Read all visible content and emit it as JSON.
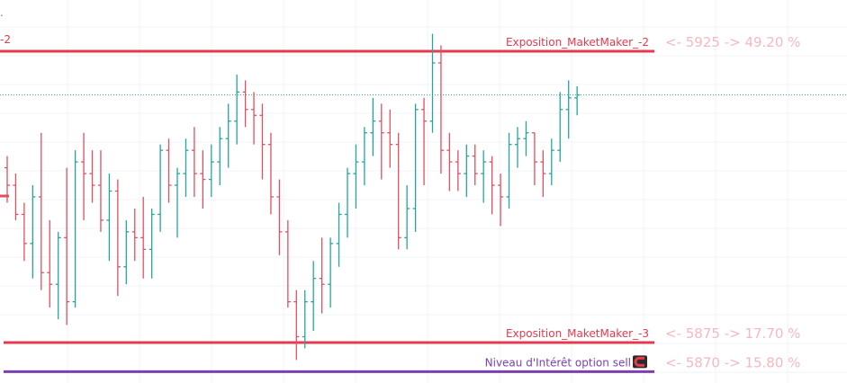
{
  "colors": {
    "up": "#26a69a",
    "down": "#e25060",
    "level": "#e53a4d",
    "interest": "#7b3fb0",
    "faded": "#f5b8c0",
    "grid": "#f0f3fa",
    "current": "#26a69a"
  },
  "corner_text": "-2",
  "levels": [
    {
      "name": "Exposition_MaketMaker_-2",
      "price": 5925,
      "pct": "49.20 %",
      "right_text": "<- 5925 -> 49.20 %",
      "color": "#e53a4d"
    },
    {
      "name": "Exposition_MaketMaker_-3",
      "price": 5875,
      "pct": "17.70 %",
      "right_text": "<- 5875 -> 17.70 %",
      "color": "#e53a4d"
    },
    {
      "name": "Niveau d'Intérêt option sell",
      "price": 5870,
      "pct": "15.80 %",
      "right_text": "<- 5870 -> 15.80 %",
      "color": "#7b3fb0",
      "icon": "magnet-icon"
    }
  ],
  "chart_data": {
    "type": "ohlc",
    "current_price": 5917.5,
    "candles": [
      [
        5905,
        5907,
        5899,
        5902
      ],
      [
        5902,
        5904,
        5896,
        5897
      ],
      [
        5897,
        5899,
        5889,
        5892
      ],
      [
        5892,
        5902,
        5886,
        5900
      ],
      [
        5900,
        5911,
        5884,
        5887
      ],
      [
        5887,
        5896,
        5881,
        5885
      ],
      [
        5885,
        5894,
        5879,
        5893
      ],
      [
        5893,
        5905,
        5878,
        5882
      ],
      [
        5882,
        5908,
        5881,
        5906
      ],
      [
        5906,
        5911,
        5896,
        5904
      ],
      [
        5904,
        5908,
        5899,
        5902
      ],
      [
        5902,
        5908,
        5894,
        5896
      ],
      [
        5896,
        5904,
        5889,
        5901
      ],
      [
        5901,
        5903,
        5883,
        5888
      ],
      [
        5888,
        5896,
        5885,
        5894
      ],
      [
        5894,
        5898,
        5889,
        5893
      ],
      [
        5893,
        5900,
        5886,
        5891
      ],
      [
        5891,
        5898,
        5886,
        5897
      ],
      [
        5897,
        5909,
        5894,
        5908
      ],
      [
        5908,
        5910,
        5899,
        5902
      ],
      [
        5902,
        5905,
        5893,
        5904
      ],
      [
        5904,
        5910,
        5900,
        5908
      ],
      [
        5908,
        5912,
        5900,
        5904
      ],
      [
        5904,
        5908,
        5898,
        5903
      ],
      [
        5903,
        5909,
        5900,
        5906
      ],
      [
        5906,
        5912,
        5902,
        5910
      ],
      [
        5910,
        5916,
        5905,
        5913
      ],
      [
        5913,
        5921,
        5909,
        5918
      ],
      [
        5918,
        5920,
        5912,
        5915
      ],
      [
        5915,
        5918,
        5909,
        5914
      ],
      [
        5914,
        5916,
        5903,
        5909
      ],
      [
        5909,
        5911,
        5897,
        5900
      ],
      [
        5900,
        5903,
        5890,
        5894
      ],
      [
        5894,
        5896,
        5881,
        5882
      ],
      [
        5882,
        5884,
        5872,
        5876
      ],
      [
        5876,
        5884,
        5874,
        5882
      ],
      [
        5882,
        5889,
        5877,
        5886
      ],
      [
        5886,
        5893,
        5880,
        5885
      ],
      [
        5885,
        5893,
        5881,
        5892
      ],
      [
        5892,
        5899,
        5888,
        5897
      ],
      [
        5897,
        5905,
        5893,
        5904
      ],
      [
        5904,
        5909,
        5898,
        5906
      ],
      [
        5906,
        5912,
        5902,
        5911
      ],
      [
        5911,
        5917,
        5907,
        5913
      ],
      [
        5913,
        5916,
        5903,
        5911
      ],
      [
        5911,
        5915,
        5905,
        5909
      ],
      [
        5909,
        5911,
        5891,
        5893
      ],
      [
        5893,
        5902,
        5891,
        5898
      ],
      [
        5898,
        5916,
        5894,
        5915
      ],
      [
        5915,
        5917,
        5902,
        5913
      ],
      [
        5913,
        5928,
        5911,
        5923
      ],
      [
        5923,
        5926,
        5904,
        5908
      ],
      [
        5908,
        5911,
        5901,
        5906
      ],
      [
        5906,
        5908,
        5901,
        5904
      ],
      [
        5904,
        5909,
        5900,
        5907
      ],
      [
        5907,
        5909,
        5902,
        5904
      ],
      [
        5904,
        5908,
        5899,
        5906
      ],
      [
        5906,
        5907,
        5897,
        5902
      ],
      [
        5902,
        5904,
        5895,
        5900
      ],
      [
        5900,
        5911,
        5898,
        5909
      ],
      [
        5909,
        5912,
        5905,
        5910
      ],
      [
        5910,
        5913,
        5907,
        5911
      ],
      [
        5911,
        5911,
        5902,
        5906
      ],
      [
        5906,
        5908,
        5900,
        5904
      ],
      [
        5904,
        5910,
        5902,
        5908
      ],
      [
        5908,
        5918,
        5906,
        5915
      ],
      [
        5915,
        5920,
        5910,
        5917
      ],
      [
        5917,
        5919,
        5914,
        5917.5
      ]
    ]
  }
}
